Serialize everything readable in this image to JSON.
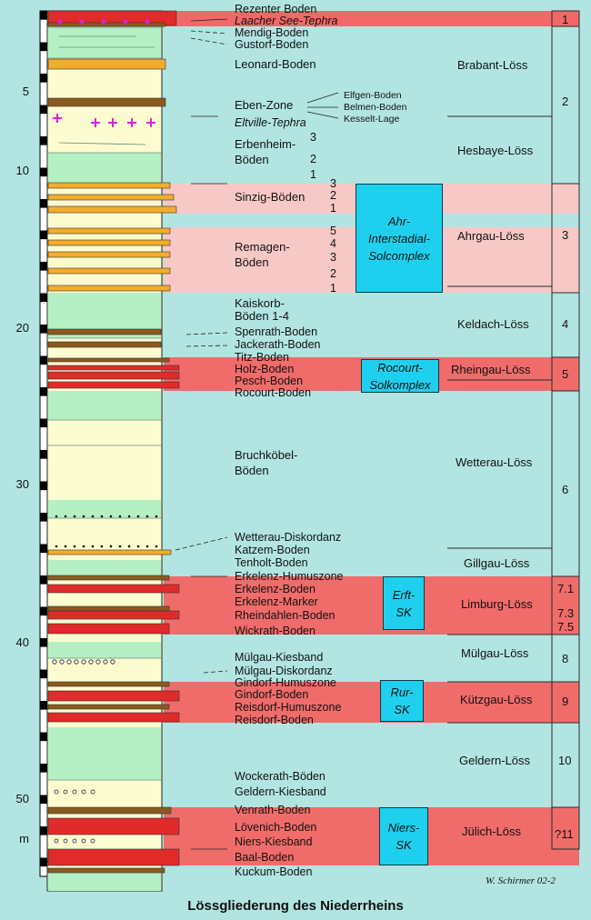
{
  "caption": "Lössgliederung des Niederrheins",
  "signature": "W. Schirmer 02-2",
  "depth_unit": "m",
  "depth_ticks": [
    "5",
    "10",
    "20",
    "30",
    "40",
    "50"
  ],
  "soils": {
    "rezenter": "Rezenter Boden",
    "laacher": "Laacher See-Tephra",
    "mendig": "Mendig-Boden",
    "gustorf": "Gustorf-Boden",
    "leonard": "Leonard-Boden",
    "eben": "Eben-Zone",
    "eltville": "Eltville-Tephra",
    "erbenheim1": "Erbenheim-",
    "erbenheim2": "Böden",
    "sinzig": "Sinzig-Böden",
    "remagen1": "Remagen-",
    "remagen2": "Böden",
    "kaiskorb1": "Kaiskorb-",
    "kaiskorb2": "Böden 1-4",
    "spenrath": "Spenrath-Boden",
    "jackerath": "Jackerath-Boden",
    "titz": "Titz-Boden",
    "holz": "Holz-Boden",
    "pesch": "Pesch-Boden",
    "rocourt": "Rocourt-Boden",
    "bruch1": "Bruchköbel-",
    "bruch2": "Böden",
    "wetteraudisk": "Wetterau-Diskordanz",
    "katzem": "Katzem-Boden",
    "tenholt": "Tenholt-Boden",
    "erkhumus": "Erkelenz-Humuszone",
    "erkboden": "Erkelenz-Boden",
    "erkmarker": "Erkelenz-Marker",
    "rheindahlen": "Rheindahlen-Boden",
    "wickrath": "Wickrath-Boden",
    "muelgaukies": "Mülgau-Kiesband",
    "muelgaudisk": "Mülgau-Diskordanz",
    "gindhumus": "Gindorf-Humuszone",
    "gindboden": "Gindorf-Boden",
    "reishumus": "Reisdorf-Humuszone",
    "reisboden": "Reisdorf-Boden",
    "wockerath": "Wockerath-Böden",
    "geldernkies": "Geldern-Kiesband",
    "venrath": "Venrath-Boden",
    "loevenich": "Lövenich-Boden",
    "nierskies": "Niers-Kiesband",
    "baal": "Baal-Boden",
    "kuckum": "Kuckum-Boden"
  },
  "eben_subs": [
    "Elfgen-Boden",
    "Belmen-Boden",
    "Kesselt-Lage"
  ],
  "sub_numbers": {
    "erbenheim": [
      "3",
      "2",
      "1"
    ],
    "sinzig": [
      "3",
      "2",
      "1"
    ],
    "remagen": [
      "5",
      "4",
      "3",
      "2",
      "1"
    ]
  },
  "boxes": {
    "ahr": [
      "Ahr-",
      "Interstadial-",
      "Solcomplex"
    ],
    "rocourt": [
      "Rocourt-",
      "Solkomplex"
    ],
    "erft": [
      "Erft-",
      "SK"
    ],
    "rur": [
      "Rur-",
      "SK"
    ],
    "niers": [
      "Niers-",
      "SK"
    ]
  },
  "loess_units": {
    "brabant": "Brabant-Löss",
    "hesbaye": "Hesbaye-Löss",
    "ahrgau": "Ahrgau-Löss",
    "keldach": "Keldach-Löss",
    "rheingau": "Rheingau-Löss",
    "wetterau": "Wetterau-Löss",
    "gillgau": "Gillgau-Löss",
    "limburg": "Limburg-Löss",
    "muelgau": "Mülgau-Löss",
    "kuetzgau": "Kützgau-Löss",
    "geldern": "Geldern-Löss",
    "juelich": "Jülich-Löss"
  },
  "cycles": {
    "c1": "1",
    "c2": "2",
    "c3": "3",
    "c4": "4",
    "c5": "5",
    "c6": "6",
    "c71": "7.1",
    "c73": "7.3",
    "c75": "7.5",
    "c8": "8",
    "c9": "9",
    "c10": "10",
    "c11": "?11"
  },
  "colors": {
    "background": "#b2e5e2",
    "loess_column": "#fdfbd0",
    "interglacial_green": "#b4f0c4",
    "soil_orange": "#f4ad2a",
    "soil_red": "#ee2a2a",
    "soil_brown": "#8a5a1f",
    "band_pink": "#f5c8c6",
    "band_red": "#f06a6a",
    "box_cyan": "#1fd0ee",
    "tephra_magenta": "#e01ee0"
  }
}
